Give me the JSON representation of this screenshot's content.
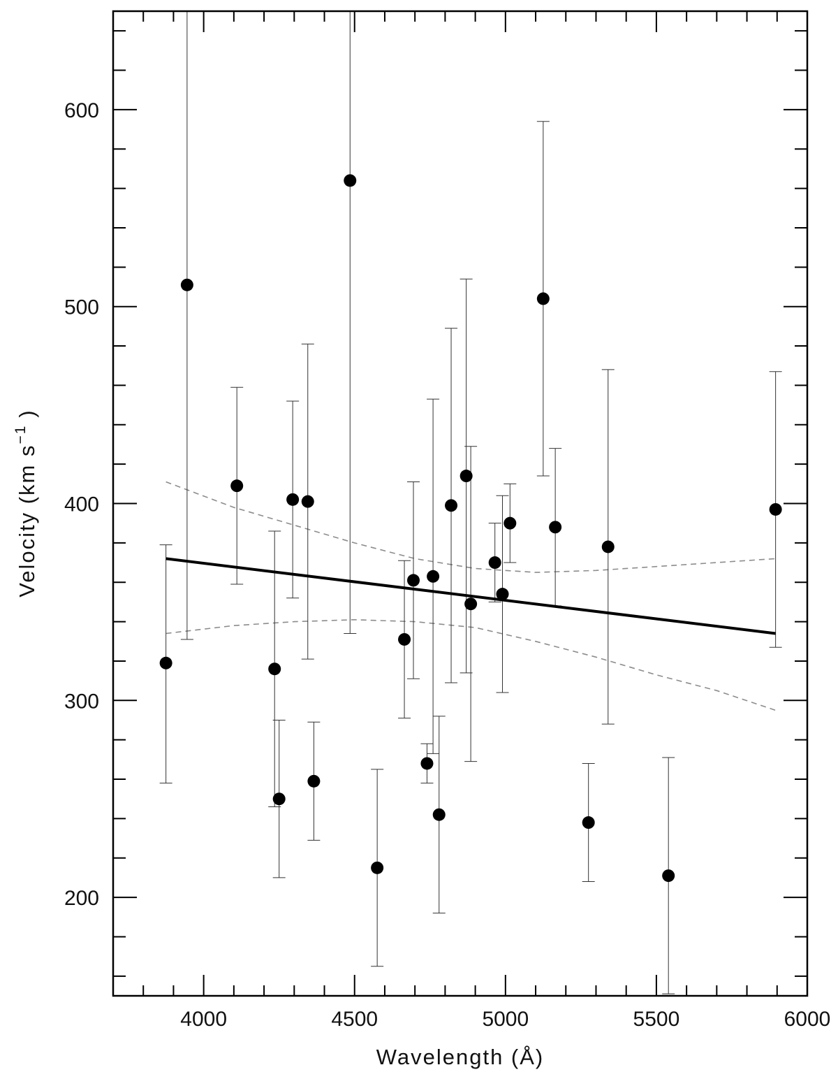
{
  "chart_data": {
    "type": "scatter",
    "title": "",
    "xlabel": "Wavelength (Å)",
    "ylabel": "Velocity (km s",
    "ylabel_sup": "−1",
    "ylabel_close": ")",
    "xlim": [
      3700,
      6000
    ],
    "ylim": [
      150,
      650
    ],
    "x_ticks": [
      4000,
      4500,
      5000,
      5500,
      6000
    ],
    "y_ticks": [
      200,
      300,
      400,
      500,
      600
    ],
    "x_tick_labels": [
      "4000",
      "4500",
      "5000",
      "5500",
      "6000"
    ],
    "y_tick_labels": [
      "200",
      "300",
      "400",
      "500",
      "600"
    ],
    "x_minor_step": 100,
    "y_minor_step": 20,
    "grid": false,
    "points": [
      {
        "x": 3875,
        "y": 319,
        "err_low": 61,
        "err_high": 60
      },
      {
        "x": 3945,
        "y": 511,
        "err_low": 180,
        "err_high": 180
      },
      {
        "x": 4110,
        "y": 409,
        "err_low": 50,
        "err_high": 50
      },
      {
        "x": 4235,
        "y": 316,
        "err_low": 70,
        "err_high": 70
      },
      {
        "x": 4250,
        "y": 250,
        "err_low": 40,
        "err_high": 40
      },
      {
        "x": 4295,
        "y": 402,
        "err_low": 50,
        "err_high": 50
      },
      {
        "x": 4345,
        "y": 401,
        "err_low": 80,
        "err_high": 80
      },
      {
        "x": 4365,
        "y": 259,
        "err_low": 30,
        "err_high": 30
      },
      {
        "x": 4485,
        "y": 564,
        "err_low": 230,
        "err_high": 230
      },
      {
        "x": 4575,
        "y": 215,
        "err_low": 50,
        "err_high": 50
      },
      {
        "x": 4665,
        "y": 331,
        "err_low": 40,
        "err_high": 40
      },
      {
        "x": 4695,
        "y": 361,
        "err_low": 50,
        "err_high": 50
      },
      {
        "x": 4740,
        "y": 268,
        "err_low": 10,
        "err_high": 10
      },
      {
        "x": 4760,
        "y": 363,
        "err_low": 90,
        "err_high": 90
      },
      {
        "x": 4780,
        "y": 242,
        "err_low": 50,
        "err_high": 50
      },
      {
        "x": 4820,
        "y": 399,
        "err_low": 90,
        "err_high": 90
      },
      {
        "x": 4870,
        "y": 414,
        "err_low": 100,
        "err_high": 100
      },
      {
        "x": 4885,
        "y": 349,
        "err_low": 80,
        "err_high": 80
      },
      {
        "x": 4965,
        "y": 370,
        "err_low": 20,
        "err_high": 20
      },
      {
        "x": 4990,
        "y": 354,
        "err_low": 50,
        "err_high": 50
      },
      {
        "x": 5015,
        "y": 390,
        "err_low": 20,
        "err_high": 20
      },
      {
        "x": 5125,
        "y": 504,
        "err_low": 90,
        "err_high": 90
      },
      {
        "x": 5165,
        "y": 388,
        "err_low": 40,
        "err_high": 40
      },
      {
        "x": 5275,
        "y": 238,
        "err_low": 30,
        "err_high": 30
      },
      {
        "x": 5340,
        "y": 378,
        "err_low": 90,
        "err_high": 90
      },
      {
        "x": 5540,
        "y": 211,
        "err_low": 60,
        "err_high": 60
      },
      {
        "x": 5895,
        "y": 397,
        "err_low": 70,
        "err_high": 70
      }
    ],
    "fit_line": {
      "x": [
        3875,
        5895
      ],
      "y": [
        372,
        334
      ]
    },
    "confidence_band": {
      "upper": [
        {
          "x": 3875,
          "y": 411
        },
        {
          "x": 4100,
          "y": 398
        },
        {
          "x": 4300,
          "y": 389
        },
        {
          "x": 4500,
          "y": 380
        },
        {
          "x": 4700,
          "y": 372
        },
        {
          "x": 4900,
          "y": 367
        },
        {
          "x": 5100,
          "y": 365
        },
        {
          "x": 5300,
          "y": 366
        },
        {
          "x": 5500,
          "y": 368
        },
        {
          "x": 5700,
          "y": 370
        },
        {
          "x": 5895,
          "y": 372
        }
      ],
      "lower": [
        {
          "x": 3875,
          "y": 334
        },
        {
          "x": 4100,
          "y": 338
        },
        {
          "x": 4300,
          "y": 340
        },
        {
          "x": 4500,
          "y": 341
        },
        {
          "x": 4700,
          "y": 340
        },
        {
          "x": 4900,
          "y": 337
        },
        {
          "x": 5100,
          "y": 330
        },
        {
          "x": 5300,
          "y": 322
        },
        {
          "x": 5500,
          "y": 313
        },
        {
          "x": 5700,
          "y": 305
        },
        {
          "x": 5895,
          "y": 295
        }
      ]
    },
    "colors": {
      "points": "#000000",
      "fit": "#000000",
      "band": "#8c8c8c",
      "errorbars": "#333333"
    }
  }
}
